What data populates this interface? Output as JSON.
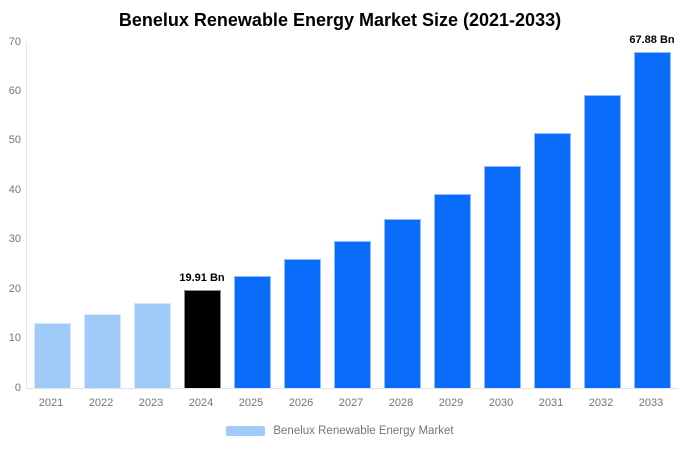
{
  "page": {
    "background_color": "#ffffff"
  },
  "chart_data": {
    "type": "bar",
    "title": "Benelux Renewable Energy Market Size (2021-2033)",
    "xlabel": "",
    "ylabel": "",
    "categories": [
      "2021",
      "2022",
      "2023",
      "2024",
      "2025",
      "2026",
      "2027",
      "2028",
      "2029",
      "2030",
      "2031",
      "2032",
      "2033"
    ],
    "series": [
      {
        "name": "Benelux Renewable Energy Market",
        "values": [
          13.1,
          15.0,
          17.2,
          19.91,
          22.7,
          26.0,
          29.8,
          34.2,
          39.2,
          44.9,
          51.5,
          59.2,
          67.88
        ]
      }
    ],
    "ylim": [
      0,
      70
    ],
    "yticks": [
      0,
      10,
      20,
      30,
      40,
      50,
      60,
      70
    ],
    "grid": false,
    "legend_position": "bottom",
    "annotations": [
      {
        "index": 3,
        "category": "2024",
        "text": "19.91 Bn"
      },
      {
        "index": 12,
        "category": "2033",
        "text": "67.88 Bn"
      }
    ],
    "bar_colors": [
      "#A0CBF8",
      "#A0CBF8",
      "#A0CBF8",
      "#000000",
      "#0A6CFB",
      "#0A6CFB",
      "#0A6CFB",
      "#0A6CFB",
      "#0A6CFB",
      "#0A6CFB",
      "#0A6CFB",
      "#0A6CFB",
      "#0A6CFB"
    ],
    "colors": {
      "historical_bar": "#A0CBF8",
      "base_year_bar": "#000000",
      "forecast_bar": "#0A6CFB",
      "axis_label": "#757575",
      "axis_line": "#e3e3e3",
      "annotation_text": "#000000",
      "title_text": "#000000"
    }
  },
  "legend": {
    "label": "Benelux Renewable Energy Market",
    "swatch_color": "#A0CBF8"
  }
}
